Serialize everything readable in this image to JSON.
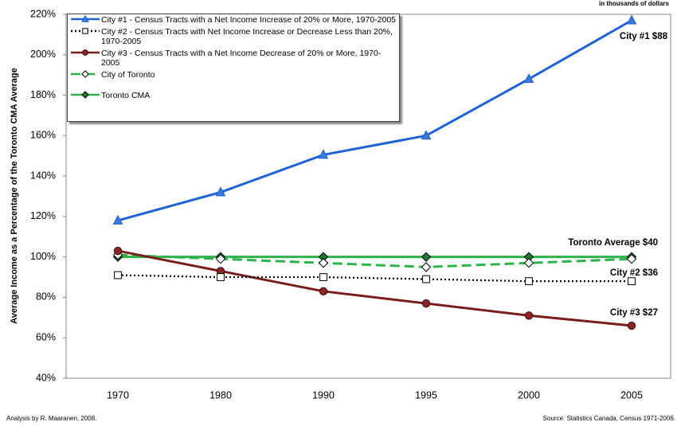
{
  "chart_data": {
    "type": "line",
    "y_label": "Average Income  as a Percentage of the Toronto CMA Average",
    "categories": [
      "1970",
      "1980",
      "1990",
      "1995",
      "2000",
      "2005"
    ],
    "ylim": [
      40,
      220
    ],
    "yticks": [
      {
        "value": 40,
        "label": "40%"
      },
      {
        "value": 60,
        "label": "60%"
      },
      {
        "value": 80,
        "label": "80%"
      },
      {
        "value": 100,
        "label": "100%"
      },
      {
        "value": 120,
        "label": "120%"
      },
      {
        "value": 140,
        "label": "140%"
      },
      {
        "value": 160,
        "label": "160%"
      },
      {
        "value": 180,
        "label": "180%"
      },
      {
        "value": 200,
        "label": "200%"
      },
      {
        "value": 220,
        "label": "220%"
      }
    ],
    "series": [
      {
        "name": "City #1 - Census Tracts with a Net Income Increase of 20% or More, 1970-2005",
        "color": "#1f62d6",
        "dash": "solid",
        "marker": "triangle",
        "marker_fill": "#3b78d8",
        "values": [
          118,
          132,
          150.5,
          160,
          188,
          217
        ]
      },
      {
        "name": "City #2 - Census Tracts with Net Income Increase or Decrease Less than 20%, 1970-2005",
        "color": "#000000",
        "dash": "dotted",
        "marker": "square",
        "marker_fill": "#ffffff",
        "values": [
          91,
          90,
          90,
          89,
          88,
          88
        ]
      },
      {
        "name": "City #3 - Census Tracts with a Net Income Decrease of 20% or More, 1970-2005",
        "color": "#7b1c1c",
        "dash": "solid",
        "marker": "circle",
        "marker_fill": "#8b2525",
        "values": [
          103,
          93,
          83,
          77,
          71,
          66
        ]
      },
      {
        "name": "City of Toronto",
        "color": "#2eb34a",
        "dash": "dashed",
        "marker": "diamond",
        "marker_fill": "#ffffff",
        "values": [
          101,
          99,
          97,
          95,
          97,
          99
        ]
      },
      {
        "name": "Toronto CMA",
        "color": "#2eb34a",
        "dash": "solid",
        "marker": "diamond",
        "marker_fill": "#1e7a30",
        "values": [
          100,
          100,
          100,
          100,
          100,
          100
        ]
      }
    ],
    "annotations": [
      "in thousands of dollars",
      "City #1 $88",
      "Toronto Average $40",
      "City #2 $36",
      "City #3 $27"
    ],
    "footer_left": "Analysis by R. Maaranen, 2008.",
    "footer_right": "Source: Statistics Canada, Census 1971-2006."
  }
}
